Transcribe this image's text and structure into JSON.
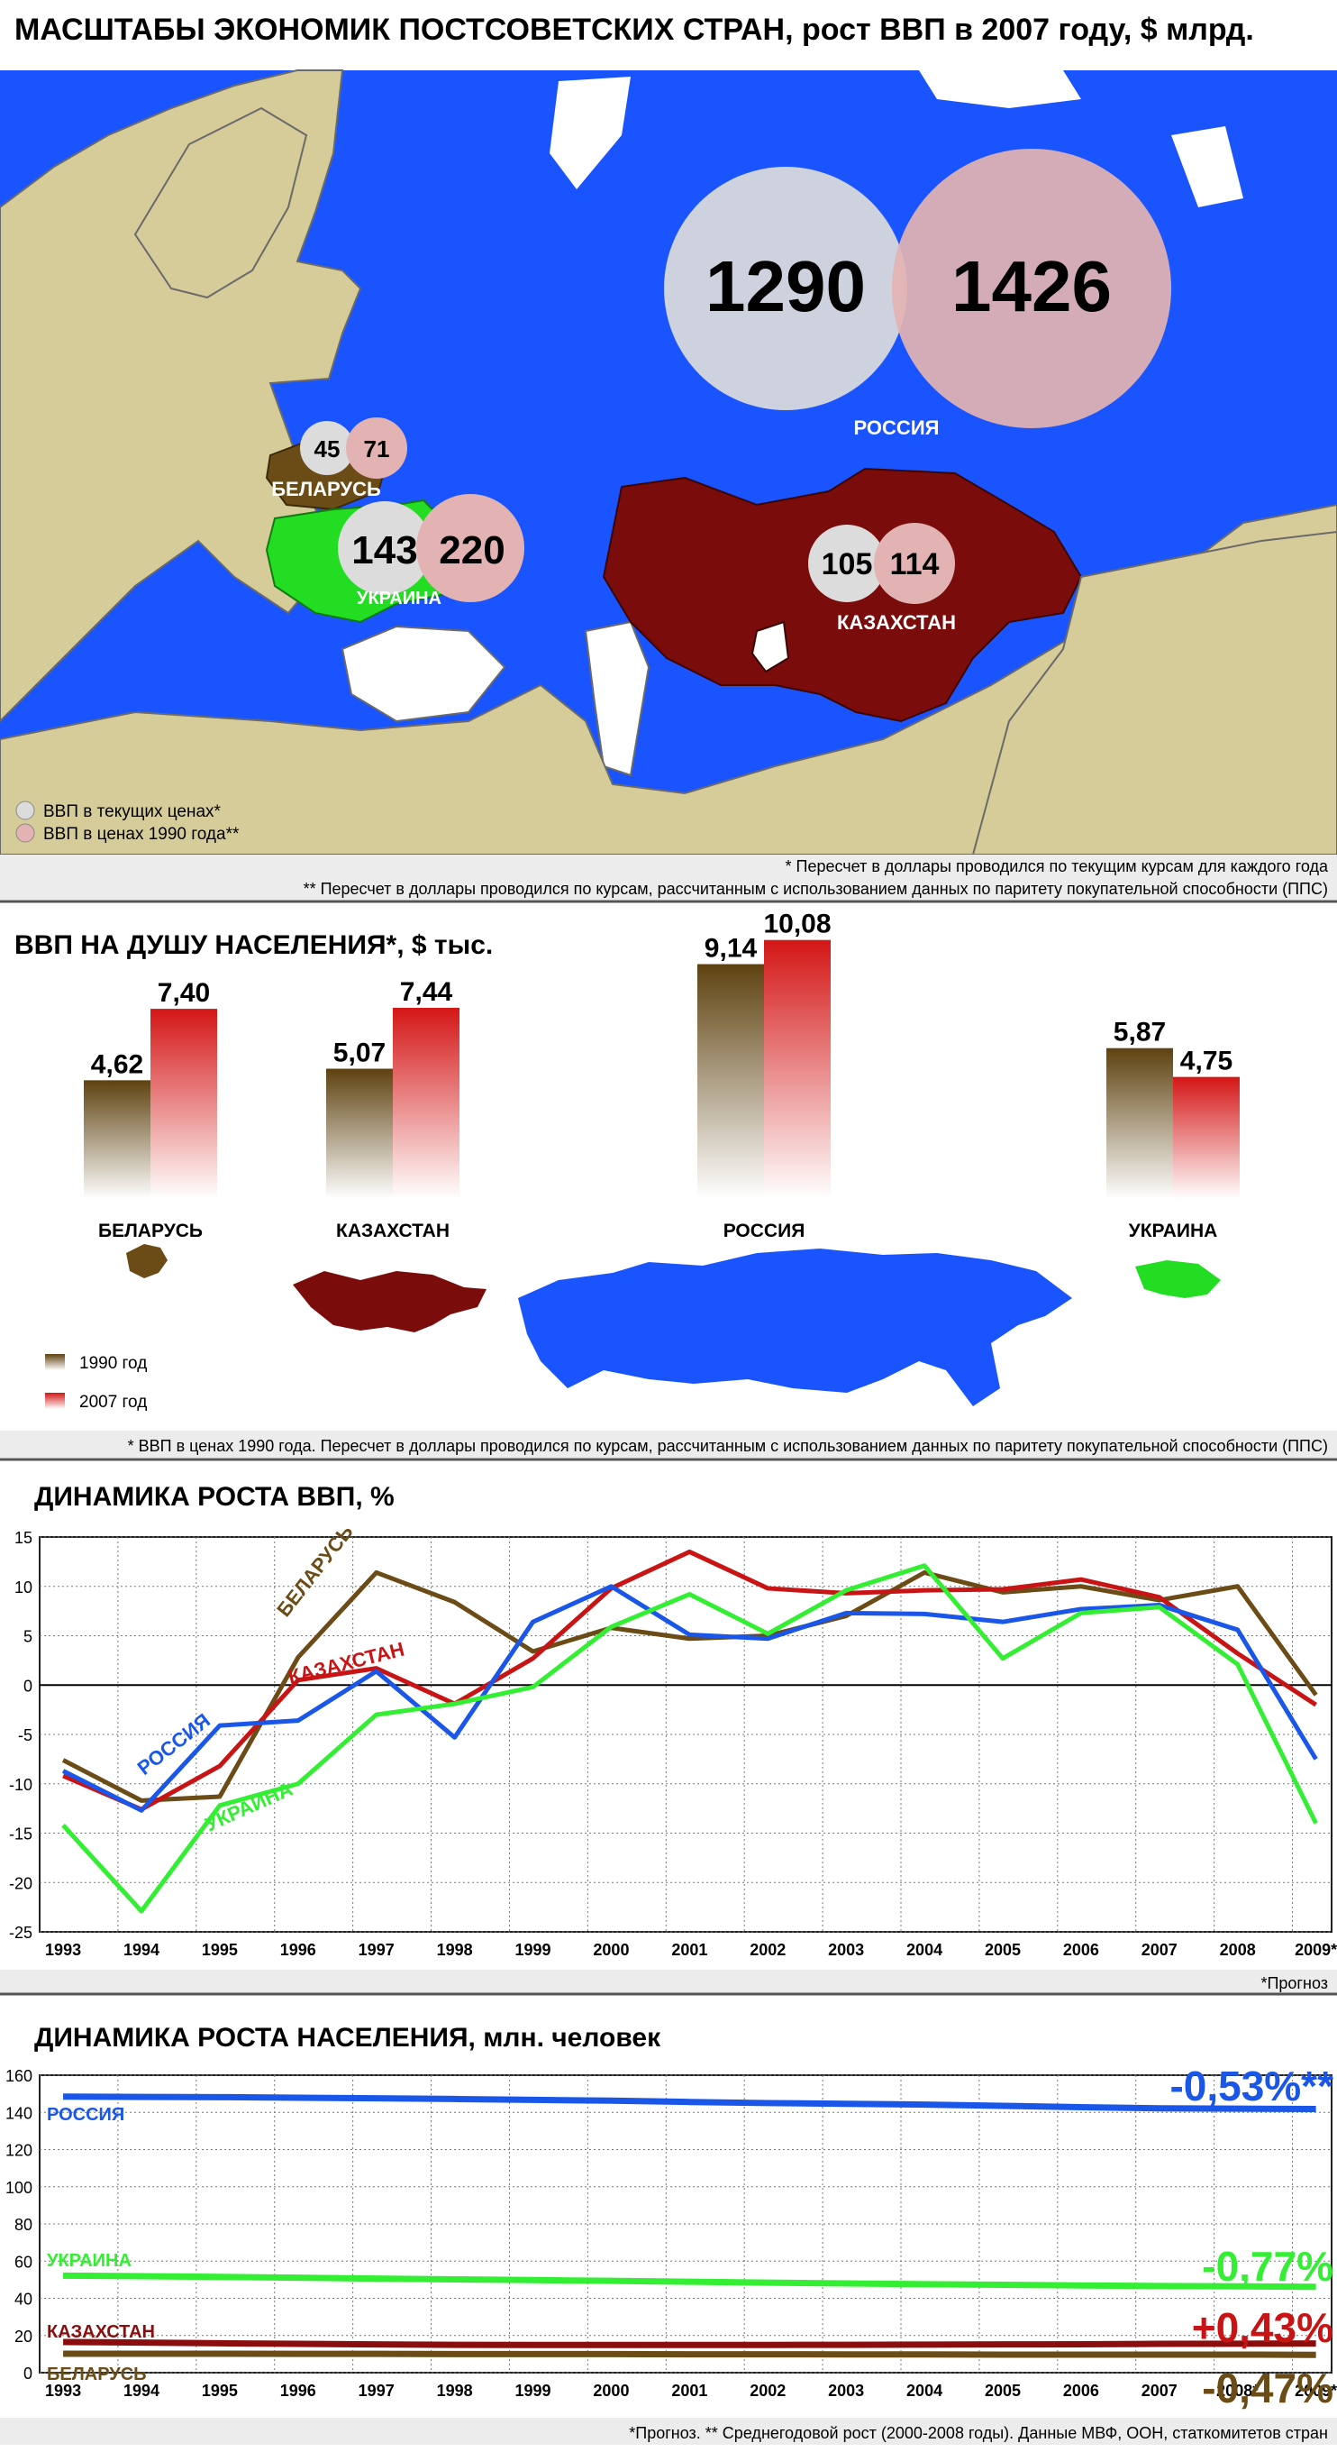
{
  "main_title": "МАСШТАБЫ ЭКОНОМИК ПОСТСОВЕТСКИХ СТРАН, рост ВВП в 2007 году, $ млрд.",
  "map": {
    "countries": [
      {
        "name": "РОССИЯ",
        "gdp_current": "1290",
        "gdp_1990": "1426",
        "color": "#1a54ff"
      },
      {
        "name": "БЕЛАРУСЬ",
        "gdp_current": "45",
        "gdp_1990": "71",
        "color": "#6b4b16"
      },
      {
        "name": "УКРАИНА",
        "gdp_current": "143",
        "gdp_1990": "220",
        "color": "#22dd22"
      },
      {
        "name": "КАЗАХСТАН",
        "gdp_current": "105",
        "gdp_1990": "114",
        "color": "#7a0c0c"
      }
    ],
    "legend": [
      {
        "label": "ВВП в текущих ценах*",
        "color": "#dcdcdc"
      },
      {
        "label": "ВВП в ценах 1990 года**",
        "color": "#e3b3b3"
      }
    ],
    "footnote1": "* Пересчет в доллары проводился по текущим курсам для каждого года",
    "footnote2": "** Пересчет в доллары проводился по курсам, рассчитанным с использованием данных по паритету покупательной способности (ППС)"
  },
  "per_capita": {
    "title": "ВВП НА ДУШУ НАСЕЛЕНИЯ*, $ тыс.",
    "legend": [
      {
        "label": "1990 год",
        "color": "#6b4b16"
      },
      {
        "label": "2007 год",
        "color": "#d41616"
      }
    ],
    "footnote": "* ВВП в ценах 1990 года. Пересчет в доллары проводился по курсам, рассчитанным с использованием данных по паритету покупательной способности (ППС)"
  },
  "gdp_growth": {
    "title": "ДИНАМИКА РОСТА ВВП, %",
    "footnote": "*Прогноз",
    "series_labels": [
      "БЕЛАРУСЬ",
      "КАЗАХСТАН",
      "РОССИЯ",
      "УКРАИНА"
    ]
  },
  "population": {
    "title": "ДИНАМИКА РОСТА НАСЕЛЕНИЯ, млн. человек",
    "footnote": "*Прогноз. ** Среднегодовой рост (2000-2008 годы). Данные МВФ, ООН, статкомитетов стран",
    "series_labels": [
      "РОССИЯ",
      "УКРАИНА",
      "КАЗАХСТАН",
      "БЕЛАРУСЬ"
    ],
    "growth_labels": [
      "-0,53%**",
      "-0,77%",
      "+0,43%",
      "-0,47%"
    ]
  },
  "chart_data": [
    {
      "type": "bar",
      "title": "ВВП НА ДУШУ НАСЕЛЕНИЯ*, $ тыс.",
      "categories": [
        "БЕЛАРУСЬ",
        "КАЗАХСТАН",
        "РОССИЯ",
        "УКРАИНА"
      ],
      "series": [
        {
          "name": "1990 год",
          "color": "#6b4b16",
          "values": [
            4.62,
            5.07,
            9.14,
            5.87
          ],
          "labels": [
            "4,62",
            "5,07",
            "9,14",
            "5,87"
          ]
        },
        {
          "name": "2007 год",
          "color": "#d41616",
          "values": [
            7.4,
            7.44,
            10.08,
            4.75
          ],
          "labels": [
            "7,40",
            "7,44",
            "10,08",
            "4,75"
          ]
        }
      ]
    },
    {
      "type": "line",
      "title": "ДИНАМИКА РОСТА ВВП, %",
      "x": [
        "1993",
        "1994",
        "1995",
        "1996",
        "1997",
        "1998",
        "1999",
        "2000",
        "2001",
        "2002",
        "2003",
        "2004",
        "2005",
        "2006",
        "2007",
        "2008",
        "2009*"
      ],
      "ylim": [
        -25,
        15
      ],
      "yticks": [
        15,
        10,
        5,
        0,
        -5,
        -10,
        -15,
        -20,
        -25
      ],
      "grid": true,
      "series": [
        {
          "name": "БЕЛАРУСЬ",
          "color": "#6b4b16",
          "values": [
            -7.6,
            -11.7,
            -11.3,
            2.8,
            11.4,
            8.4,
            3.4,
            5.8,
            4.7,
            5.0,
            7.0,
            11.4,
            9.4,
            10.0,
            8.6,
            10.0,
            -1.0
          ]
        },
        {
          "name": "КАЗАХСТАН",
          "color": "#c81414",
          "values": [
            -9.2,
            -12.6,
            -8.2,
            0.5,
            1.7,
            -1.9,
            2.7,
            9.8,
            13.5,
            9.8,
            9.3,
            9.6,
            9.7,
            10.7,
            8.9,
            3.2,
            -2.0
          ]
        },
        {
          "name": "РОССИЯ",
          "color": "#1a56e8",
          "values": [
            -8.7,
            -12.7,
            -4.1,
            -3.6,
            1.4,
            -5.3,
            6.4,
            10.0,
            5.1,
            4.7,
            7.3,
            7.2,
            6.4,
            7.7,
            8.1,
            5.6,
            -7.5
          ]
        },
        {
          "name": "УКРАИНА",
          "color": "#33ee33",
          "values": [
            -14.2,
            -22.9,
            -12.2,
            -10.0,
            -3.0,
            -1.9,
            -0.2,
            5.9,
            9.2,
            5.2,
            9.6,
            12.1,
            2.7,
            7.3,
            7.9,
            2.1,
            -14.0
          ]
        }
      ]
    },
    {
      "type": "line",
      "title": "ДИНАМИКА РОСТА НАСЕЛЕНИЯ, млн. человек",
      "x": [
        "1993",
        "1994",
        "1995",
        "1996",
        "1997",
        "1998",
        "1999",
        "2000",
        "2001",
        "2002",
        "2003",
        "2004",
        "2005",
        "2006",
        "2007",
        "2008*",
        "2009*"
      ],
      "ylim": [
        0,
        160
      ],
      "yticks": [
        160,
        140,
        120,
        100,
        80,
        60,
        40,
        20,
        0
      ],
      "grid": true,
      "series": [
        {
          "name": "РОССИЯ",
          "color": "#1a56e8",
          "values": [
            148.5,
            148.3,
            148.2,
            147.9,
            147.6,
            147.2,
            146.7,
            146.3,
            145.6,
            145.0,
            144.6,
            144.2,
            143.5,
            142.8,
            142.2,
            142.0,
            141.8
          ]
        },
        {
          "name": "УКРАИНА",
          "color": "#33ee33",
          "values": [
            52.2,
            51.9,
            51.5,
            51.1,
            50.6,
            50.2,
            49.8,
            49.4,
            48.9,
            48.4,
            48.0,
            47.6,
            47.3,
            46.9,
            46.6,
            46.4,
            46.2
          ]
        },
        {
          "name": "КАЗАХСТАН",
          "color": "#8b0e0e",
          "values": [
            16.5,
            16.2,
            15.8,
            15.5,
            15.2,
            15.0,
            14.9,
            14.9,
            14.9,
            14.9,
            15.0,
            15.1,
            15.2,
            15.3,
            15.5,
            15.6,
            15.7
          ]
        },
        {
          "name": "БЕЛАРУСЬ",
          "color": "#6b4b16",
          "values": [
            10.2,
            10.2,
            10.2,
            10.1,
            10.1,
            10.0,
            10.0,
            10.0,
            9.9,
            9.9,
            9.8,
            9.8,
            9.7,
            9.7,
            9.7,
            9.7,
            9.6
          ]
        }
      ]
    }
  ]
}
